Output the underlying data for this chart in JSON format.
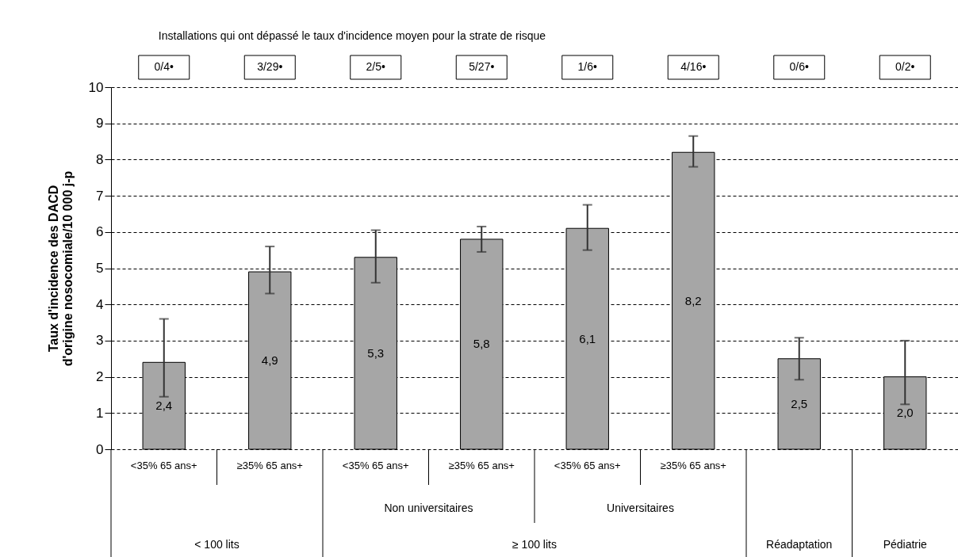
{
  "chart_data": {
    "type": "bar",
    "ylabel": "Taux d'incidence des DACD\nd'origine nosocomiale/10 000 j-p",
    "categories": [
      "<35% 65 ans+",
      "≥35% 65 ans+",
      "<35% 65 ans+",
      "≥35% 65 ans+",
      "<35% 65 ans+",
      "≥35% 65 ans+",
      null,
      null
    ],
    "values": [
      2.4,
      4.9,
      5.3,
      5.8,
      6.1,
      8.2,
      2.5,
      2.0
    ],
    "errors": [
      [
        1.45,
        3.6
      ],
      [
        4.3,
        5.6
      ],
      [
        4.6,
        6.05
      ],
      [
        5.45,
        6.15
      ],
      [
        5.5,
        6.75
      ],
      [
        7.8,
        8.65
      ],
      [
        1.92,
        3.08
      ],
      [
        1.24,
        3.0
      ]
    ],
    "color": "#a6a6a6",
    "value_labels": [
      "2,4",
      "4,9",
      "5,3",
      "5,8",
      "6,1",
      "8,2",
      "2,5",
      "2,0"
    ],
    "ylim": [
      0,
      10
    ],
    "yticks": [
      0,
      1,
      2,
      3,
      4,
      5,
      6,
      7,
      8,
      9,
      10
    ],
    "grid": "y",
    "line_style": "dashed",
    "annotations": [
      "Installations qui ont dépassé le taux d'incidence moyen pour la strate de risque",
      "0/4•",
      "3/29•",
      "2/5•",
      "5/27•",
      "1/6•",
      "4/16•",
      "0/6•",
      "0/2•",
      "Non universitaires",
      "Universitaires",
      "< 100 lits",
      "≥ 100 lits",
      "Réadaptation",
      "Pédiatrie"
    ]
  }
}
